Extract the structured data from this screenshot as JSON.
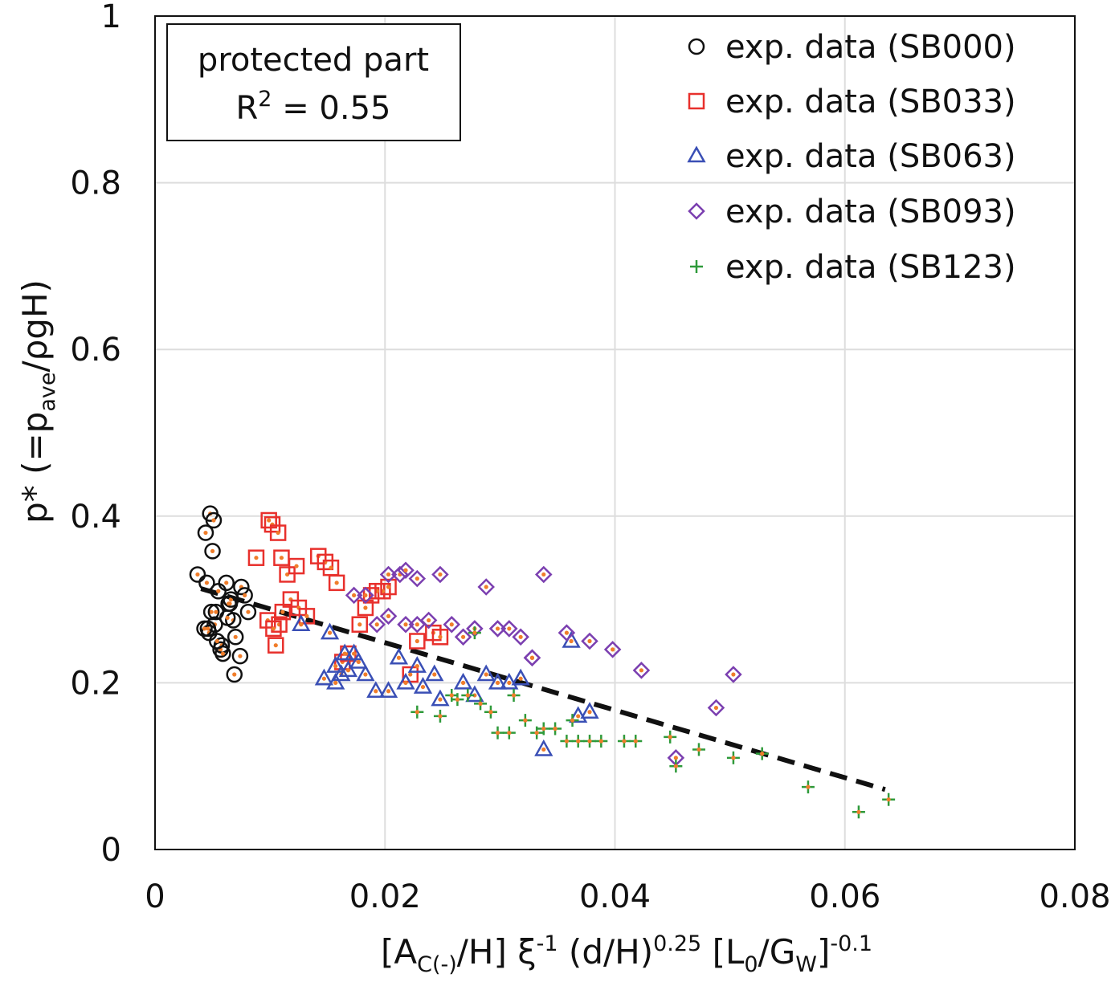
{
  "chart_data": {
    "type": "scatter",
    "title": "",
    "xlabel": "[A_C(-)/H] ξ^-1 (d/H)^0.25 [L_0/G_W]^-0.1",
    "xlabel_parts": {
      "p1": "[A",
      "p1_sub": "C(-)",
      "p2": "/H] ξ",
      "p2_sup": "-1",
      "p3": " (d/H)",
      "p3_sup": "0.25",
      "p4": " [L",
      "p4_sub": "0",
      "p5": "/G",
      "p5_sub": "W",
      "p6": "]",
      "p6_sup": "-0.1"
    },
    "ylabel": "p* (=p_ave/ρgH)",
    "ylabel_parts": {
      "p1": "p* (=p",
      "p1_sub": "ave",
      "p2": "/ρgH)"
    },
    "xlim": [
      0,
      0.08
    ],
    "ylim": [
      0,
      1
    ],
    "xticks": [
      "0",
      "0.02",
      "0.04",
      "0.06",
      "0.08"
    ],
    "yticks": [
      "0",
      "0.2",
      "0.4",
      "0.6",
      "0.8",
      "1"
    ],
    "grid": true,
    "legend_position": "top-right",
    "annotation": {
      "line1": "protected part",
      "r2_label": "R",
      "r2_sup": "2",
      "r2_value": " = 0.55"
    },
    "fit_line": {
      "name": "fit",
      "x": [
        0.004,
        0.0635
      ],
      "y": [
        0.313,
        0.072
      ],
      "style": "dashed",
      "color": "#111111"
    },
    "series": [
      {
        "name": "exp. data (SB000)",
        "label": "exp. data (SB000)",
        "marker": "circle",
        "color": "#111111",
        "x": [
          0.0037,
          0.0044,
          0.0048,
          0.005,
          0.0051,
          0.0045,
          0.0055,
          0.0049,
          0.0052,
          0.0057,
          0.0062,
          0.0065,
          0.0068,
          0.0066,
          0.0063,
          0.0058,
          0.0054,
          0.0047,
          0.0069,
          0.0075,
          0.0078,
          0.0081,
          0.0074,
          0.007,
          0.0046,
          0.0043,
          0.0053,
          0.0059,
          0.0064
        ],
        "y": [
          0.33,
          0.38,
          0.403,
          0.358,
          0.395,
          0.32,
          0.31,
          0.285,
          0.27,
          0.24,
          0.32,
          0.295,
          0.275,
          0.3,
          0.278,
          0.245,
          0.25,
          0.26,
          0.21,
          0.315,
          0.305,
          0.285,
          0.232,
          0.255,
          0.265,
          0.265,
          0.285,
          0.235,
          0.295
        ]
      },
      {
        "name": "exp. data (SB033)",
        "label": "exp. data (SB033)",
        "marker": "square",
        "color": "#e8302c",
        "x": [
          0.0088,
          0.0099,
          0.0102,
          0.0107,
          0.011,
          0.0108,
          0.0115,
          0.0118,
          0.0123,
          0.0105,
          0.0098,
          0.0103,
          0.0111,
          0.0125,
          0.0132,
          0.0142,
          0.0148,
          0.0153,
          0.0158,
          0.0163,
          0.0168,
          0.0178,
          0.0183,
          0.0188,
          0.0193,
          0.0198,
          0.0203,
          0.0228,
          0.0242,
          0.0248,
          0.0222
        ],
        "y": [
          0.35,
          0.395,
          0.39,
          0.38,
          0.35,
          0.27,
          0.33,
          0.3,
          0.34,
          0.245,
          0.275,
          0.265,
          0.285,
          0.29,
          0.28,
          0.352,
          0.345,
          0.338,
          0.32,
          0.225,
          0.235,
          0.27,
          0.29,
          0.305,
          0.31,
          0.31,
          0.315,
          0.25,
          0.26,
          0.255,
          0.21
        ]
      },
      {
        "name": "exp. data (SB063)",
        "label": "exp. data (SB063)",
        "marker": "triangle",
        "color": "#3a4fb5",
        "x": [
          0.0127,
          0.0147,
          0.0152,
          0.0157,
          0.0162,
          0.0165,
          0.0168,
          0.0173,
          0.0177,
          0.0183,
          0.0157,
          0.0192,
          0.0203,
          0.0212,
          0.0218,
          0.0228,
          0.0233,
          0.0243,
          0.0248,
          0.0268,
          0.0278,
          0.0288,
          0.0298,
          0.0308,
          0.0318,
          0.0338,
          0.0362,
          0.0368,
          0.0378
        ],
        "y": [
          0.27,
          0.205,
          0.26,
          0.22,
          0.21,
          0.235,
          0.215,
          0.235,
          0.225,
          0.21,
          0.2,
          0.19,
          0.19,
          0.23,
          0.2,
          0.22,
          0.195,
          0.21,
          0.18,
          0.2,
          0.185,
          0.21,
          0.2,
          0.2,
          0.205,
          0.12,
          0.25,
          0.16,
          0.165
        ]
      },
      {
        "name": "exp. data (SB093)",
        "label": "exp. data (SB093)",
        "marker": "diamond",
        "color": "#7b3fb0",
        "x": [
          0.0173,
          0.0183,
          0.0193,
          0.0203,
          0.0213,
          0.0218,
          0.0228,
          0.0238,
          0.0248,
          0.0258,
          0.0268,
          0.0278,
          0.0288,
          0.0298,
          0.0308,
          0.0318,
          0.0328,
          0.0338,
          0.0358,
          0.0378,
          0.0398,
          0.0423,
          0.0453,
          0.0488,
          0.0503,
          0.0218,
          0.0203,
          0.0228,
          0.0328
        ],
        "y": [
          0.305,
          0.305,
          0.27,
          0.28,
          0.33,
          0.27,
          0.27,
          0.275,
          0.33,
          0.27,
          0.255,
          0.265,
          0.315,
          0.265,
          0.265,
          0.255,
          0.23,
          0.33,
          0.26,
          0.25,
          0.24,
          0.215,
          0.11,
          0.17,
          0.21,
          0.335,
          0.33,
          0.325,
          0.23
        ]
      },
      {
        "name": "exp. data (SB123)",
        "label": "exp. data (SB123)",
        "marker": "plus",
        "color": "#2e9a3a",
        "x": [
          0.0228,
          0.0248,
          0.0258,
          0.0263,
          0.0272,
          0.0283,
          0.0292,
          0.0298,
          0.0312,
          0.0322,
          0.0332,
          0.0348,
          0.0358,
          0.0363,
          0.0378,
          0.0388,
          0.0408,
          0.0418,
          0.0448,
          0.0453,
          0.0473,
          0.0503,
          0.0528,
          0.0568,
          0.0612,
          0.0638,
          0.0278,
          0.0308,
          0.0338,
          0.0368
        ],
        "y": [
          0.165,
          0.16,
          0.185,
          0.18,
          0.185,
          0.175,
          0.165,
          0.14,
          0.185,
          0.155,
          0.14,
          0.145,
          0.13,
          0.155,
          0.13,
          0.13,
          0.13,
          0.13,
          0.135,
          0.1,
          0.12,
          0.11,
          0.115,
          0.075,
          0.045,
          0.06,
          0.26,
          0.14,
          0.145,
          0.13
        ]
      }
    ]
  }
}
